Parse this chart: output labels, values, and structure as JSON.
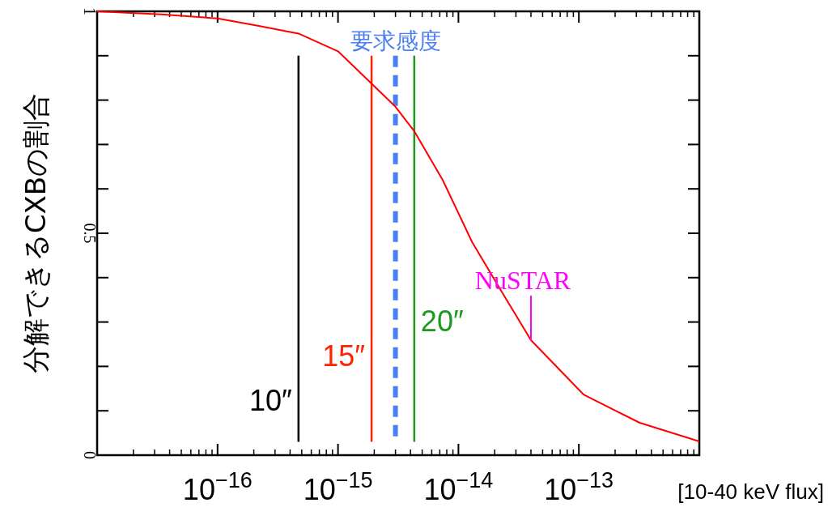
{
  "chart_data": {
    "type": "line",
    "ylabel": "分解できるCXBの割合",
    "xlabel": "[10-40 keV flux]",
    "log": "x",
    "xlim": [
      1e-17,
      1e-12
    ],
    "xticks": [
      {
        "value": 1e-16,
        "label": "10$^{−16}$"
      },
      {
        "value": 1e-15,
        "label": "10$^{−15}$"
      },
      {
        "value": 1e-14,
        "label": "10$^{−14}$"
      },
      {
        "value": 1e-13,
        "label": "10$^{−13}$"
      }
    ],
    "ylim": [
      0,
      1
    ],
    "yticks": [
      0,
      {
        "value": 0.1,
        "label": null
      },
      {
        "value": 0.2,
        "label": null
      },
      {
        "value": 0.3,
        "label": null
      },
      {
        "value": 0.4,
        "label": null
      },
      0.5,
      {
        "value": 0.6,
        "label": null
      },
      {
        "value": 0.7,
        "label": null
      },
      {
        "value": 0.8,
        "label": null
      },
      {
        "value": 0.9,
        "label": null
      },
      1
    ],
    "grid": false,
    "marker": "none",
    "x": [
      1e-17,
      3.4e-17,
      1e-16,
      2.2e-16,
      4.7e-16,
      1e-15,
      1.9e-15,
      3e-15,
      4.3e-15,
      7.4e-15,
      1.3e-14,
      2.2e-14,
      4e-14,
      1.1e-13,
      3.2e-13,
      1e-12
    ],
    "series": [
      {
        "color": "#ff0000",
        "values": [
          1.0,
          0.993,
          0.984,
          0.967,
          0.95,
          0.91,
          0.837,
          0.785,
          0.73,
          0.62,
          0.48,
          0.376,
          0.259,
          0.136,
          0.073,
          0.031
        ]
      }
    ],
    "ref_lines": [
      {
        "axis": "x",
        "value": 4.7e-16,
        "label": "10″",
        "color": "#000000",
        "line_style": "solid"
      },
      {
        "axis": "x",
        "value": 1.9e-15,
        "label": "15″",
        "color": "#ff2200",
        "line_style": "solid"
      },
      {
        "axis": "x",
        "value": 3e-15,
        "label": "要求感度",
        "color": "#4a80f0",
        "line_style": "dashed"
      },
      {
        "axis": "x",
        "value": 4.3e-15,
        "label": "20″",
        "color": "#1c9a1c",
        "line_style": "solid"
      }
    ],
    "annotations": [
      {
        "text": "NuSTAR",
        "x": 4e-14,
        "y": 0.259
      }
    ]
  }
}
